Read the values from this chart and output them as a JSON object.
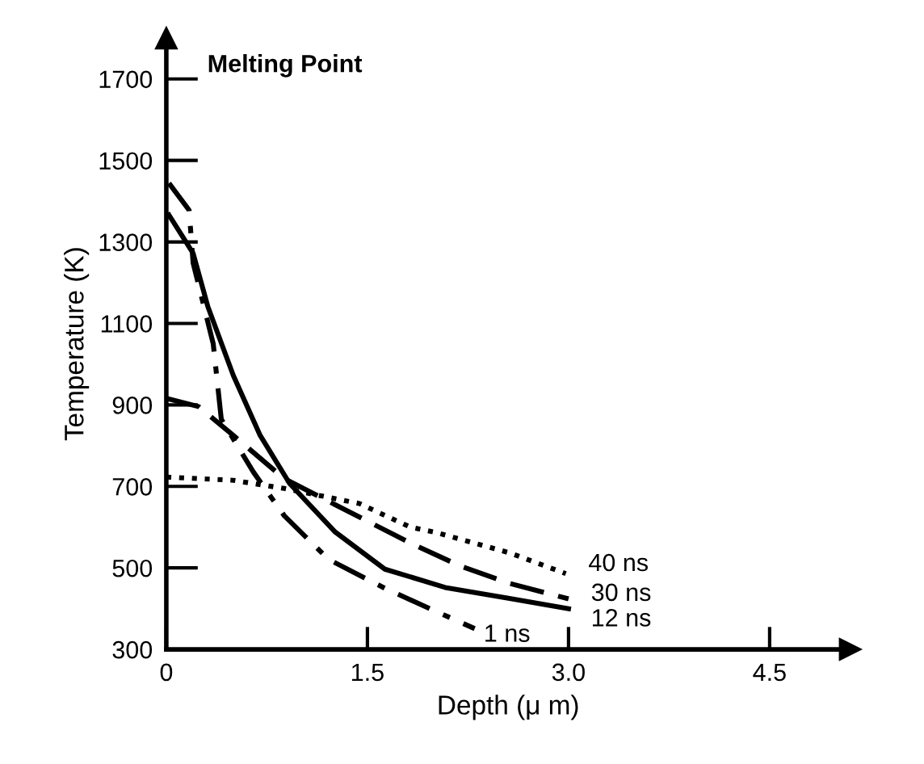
{
  "chart_data": {
    "type": "line",
    "xlabel": "Depth (μ m)",
    "ylabel": "Temperature (K)",
    "xlim": [
      0,
      5.1
    ],
    "ylim": [
      300,
      1800
    ],
    "xticks": [
      0,
      1.5,
      {
        "value": 3.0,
        "label": "3.0"
      },
      4.5
    ],
    "yticks": [
      300,
      500,
      700,
      900,
      1100,
      1300,
      1500,
      1700
    ],
    "grid": false,
    "legend": false,
    "marker": "none",
    "annotations": [
      "Melting Point"
    ],
    "series": [
      {
        "name": "1 ns",
        "color": "#000000",
        "line_style": "dashdot",
        "x": [
          0.02,
          0.17,
          0.2,
          0.35,
          0.41,
          0.65,
          0.88,
          1.21,
          1.63,
          2.0,
          2.3
        ],
        "values": [
          1444,
          1378,
          1248,
          1050,
          865,
          735,
          628,
          521,
          450,
          395,
          351
        ]
      },
      {
        "name": "12 ns",
        "color": "#000000",
        "line_style": "solid",
        "x": [
          0.02,
          0.2,
          0.31,
          0.5,
          0.7,
          0.92,
          1.26,
          1.63,
          2.08,
          2.56,
          3.0
        ],
        "values": [
          1366,
          1272,
          1141,
          972,
          825,
          707,
          588,
          497,
          452,
          425,
          400
        ]
      },
      {
        "name": "30 ns",
        "color": "#000000",
        "line_style": "dashed",
        "x": [
          0.0,
          0.24,
          0.5,
          0.88,
          1.26,
          1.82,
          2.19,
          2.56,
          3.0
        ],
        "values": [
          916,
          896,
          825,
          719,
          655,
          561,
          505,
          462,
          424
        ]
      },
      {
        "name": "40 ns",
        "color": "#000000",
        "line_style": "dotted",
        "x": [
          0.0,
          0.5,
          0.88,
          1.44,
          1.82,
          2.0,
          2.56,
          2.98
        ],
        "values": [
          723,
          715,
          695,
          658,
          600,
          588,
          537,
          486
        ]
      }
    ]
  }
}
